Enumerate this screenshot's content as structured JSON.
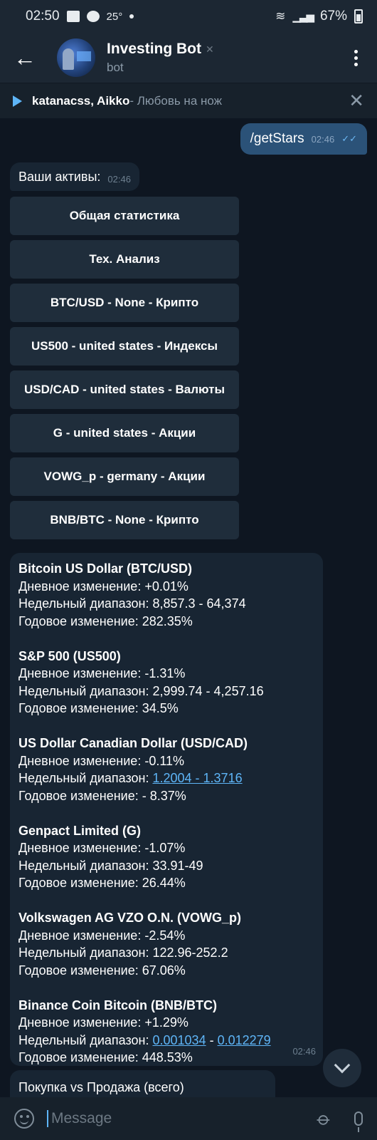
{
  "status_bar": {
    "time": "02:50",
    "temperature": "25°",
    "battery": "67%"
  },
  "header": {
    "title": "Investing Bot",
    "subtitle": "bot"
  },
  "pinned": {
    "artist": "katanacss, Aikko",
    "track": " - Любовь на нож"
  },
  "outgoing": {
    "text": "/getStars",
    "time": "02:46"
  },
  "incoming_assets": {
    "text": "Ваши активы:",
    "time": "02:46"
  },
  "keyboard": [
    "Общая статистика",
    "Тех. Анализ",
    "BTC/USD - None - Крипто",
    "US500 - united states - Индексы",
    "USD/CAD - united states - Валюты",
    "G - united states - Акции",
    "VOWG_p - germany - Акции",
    "BNB/BTC - None - Крипто"
  ],
  "stats": {
    "time": "02:46",
    "assets": [
      {
        "name": "Bitcoin US Dollar (BTC/USD)",
        "daily": "Дневное изменение: +0.01%",
        "weekly_label": "Недельный диапазон: ",
        "weekly": "8,857.3 - 64,374",
        "yearly": "Годовое изменение: 282.35%"
      },
      {
        "name": "S&P 500 (US500)",
        "daily": "Дневное изменение: -1.31%",
        "weekly_label": "Недельный диапазон: ",
        "weekly": "2,999.74 - 4,257.16",
        "yearly": "Годовое изменение: 34.5%"
      },
      {
        "name": "US Dollar Canadian Dollar (USD/CAD)",
        "daily": "Дневное изменение: -0.11%",
        "weekly_label": "Недельный диапазон: ",
        "weekly": "1.2004 - 1.3716",
        "yearly": "Годовое изменение: - 8.37%"
      },
      {
        "name": "Genpact Limited (G)",
        "daily": "Дневное изменение: -1.07%",
        "weekly_label": "Недельный диапазон: ",
        "weekly": "33.91-49",
        "yearly": "Годовое изменение: 26.44%"
      },
      {
        "name": "Volkswagen AG VZO O.N. (VOWG_p)",
        "daily": "Дневное изменение: -2.54%",
        "weekly_label": "Недельный диапазон: ",
        "weekly": "122.96-252.2",
        "yearly": "Годовое изменение: 67.06%"
      },
      {
        "name": "Binance Coin Bitcoin (BNB/BTC)",
        "daily": "Дневное изменение: +1.29%",
        "weekly_label": "Недельный диапазон: ",
        "weekly_low": "0.001034",
        "weekly_sep": " - ",
        "weekly_high": "0.012279",
        "yearly": "Годовое изменение: 448.53%"
      }
    ]
  },
  "partial_message": {
    "text": "Покупка vs Продажа (всего)"
  },
  "input": {
    "placeholder": "Message"
  }
}
